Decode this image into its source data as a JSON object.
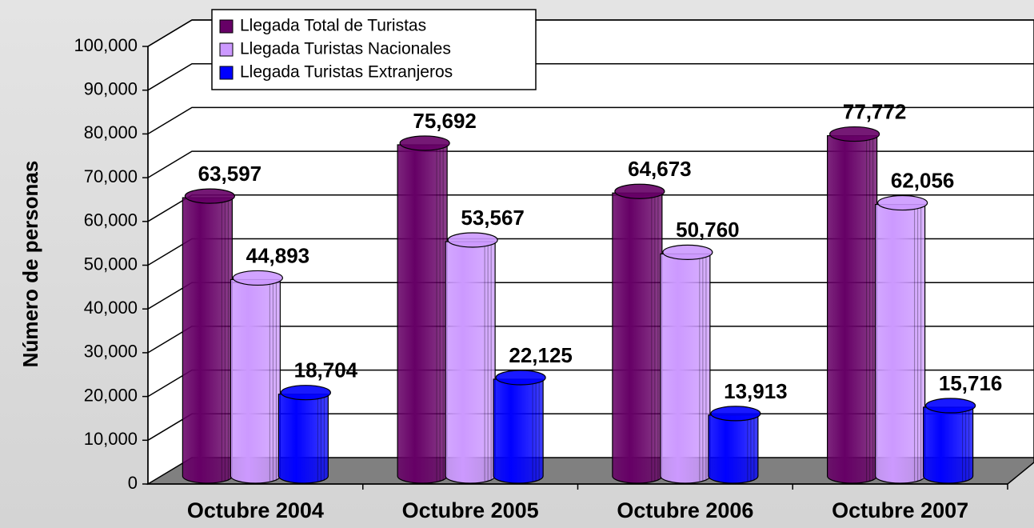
{
  "chart_data": {
    "type": "bar",
    "ylabel": "Número de personas",
    "categories": [
      "Octubre 2004",
      "Octubre 2005",
      "Octubre 2006",
      "Octubre 2007"
    ],
    "series": [
      {
        "name": "Llegada Total de Turistas",
        "color": "#660066",
        "values": [
          63597,
          75692,
          64673,
          77772
        ],
        "value_labels": [
          "63,597",
          "75,692",
          "64,673",
          "77,772"
        ]
      },
      {
        "name": "Llegada Turistas Nacionales",
        "color": "#cc99ff",
        "values": [
          44893,
          53567,
          50760,
          62056
        ],
        "value_labels": [
          "44,893",
          "53,567",
          "50,760",
          "62,056"
        ]
      },
      {
        "name": "Llegada Turistas Extranjeros",
        "color": "#0000ff",
        "values": [
          18704,
          22125,
          13913,
          15716
        ],
        "value_labels": [
          "18,704",
          "22,125",
          "13,913",
          "15,716"
        ]
      }
    ],
    "ylim": [
      0,
      100000
    ],
    "yticks": [
      0,
      {
        "value": 10000,
        "label": "10,000"
      },
      {
        "value": 20000,
        "label": "20,000"
      },
      {
        "value": 30000,
        "label": "30,000"
      },
      {
        "value": 40000,
        "label": "40,000"
      },
      {
        "value": 50000,
        "label": "50,000"
      },
      {
        "value": 60000,
        "label": "60,000"
      },
      {
        "value": 70000,
        "label": "70,000"
      },
      {
        "value": 80000,
        "label": "80,000"
      },
      {
        "value": 90000,
        "label": "90,000"
      },
      {
        "value": 100000,
        "label": "100,000"
      }
    ],
    "grid": true,
    "legend": "top"
  }
}
